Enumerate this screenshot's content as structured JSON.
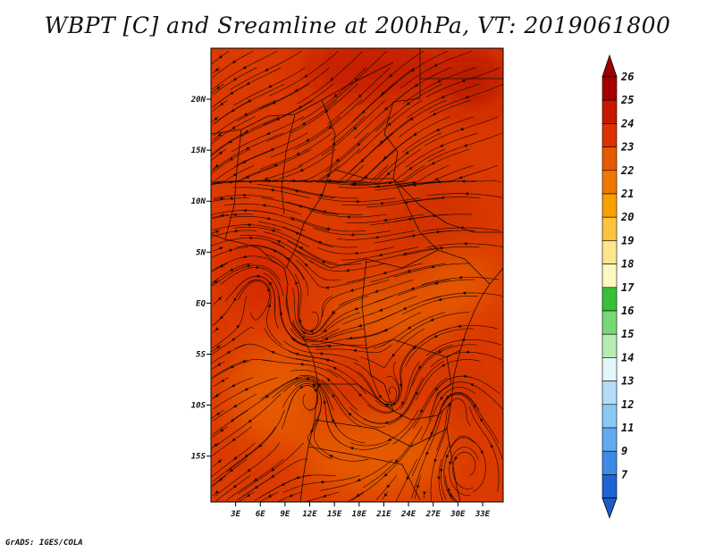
{
  "title": "WBPT [C] and Sreamline at 200hPa, VT: 2019061800",
  "credit": "GrADS: IGES/COLA",
  "map": {
    "lon_range": [
      0,
      35.5
    ],
    "lat_range": [
      -19.5,
      25
    ],
    "lat_ticks": [
      {
        "value": 20,
        "label": "20N"
      },
      {
        "value": 15,
        "label": "15N"
      },
      {
        "value": 10,
        "label": "10N"
      },
      {
        "value": 5,
        "label": "5N"
      },
      {
        "value": 0,
        "label": "EQ"
      },
      {
        "value": -5,
        "label": "5S"
      },
      {
        "value": -10,
        "label": "10S"
      },
      {
        "value": -15,
        "label": "15S"
      }
    ],
    "lon_ticks": [
      {
        "value": 3,
        "label": "3E"
      },
      {
        "value": 6,
        "label": "6E"
      },
      {
        "value": 9,
        "label": "9E"
      },
      {
        "value": 12,
        "label": "12E"
      },
      {
        "value": 15,
        "label": "15E"
      },
      {
        "value": 18,
        "label": "18E"
      },
      {
        "value": 21,
        "label": "21E"
      },
      {
        "value": 24,
        "label": "24E"
      },
      {
        "value": 27,
        "label": "27E"
      },
      {
        "value": 30,
        "label": "30E"
      },
      {
        "value": 33,
        "label": "33E"
      }
    ]
  },
  "colorbar": {
    "levels": [
      {
        "label": "26",
        "color": "#a50000"
      },
      {
        "label": "25",
        "color": "#c81800"
      },
      {
        "label": "24",
        "color": "#dc3200"
      },
      {
        "label": "23",
        "color": "#e85a00"
      },
      {
        "label": "22",
        "color": "#f07800"
      },
      {
        "label": "21",
        "color": "#f8a000"
      },
      {
        "label": "20",
        "color": "#fcc43c"
      },
      {
        "label": "19",
        "color": "#fde68c"
      },
      {
        "label": "18",
        "color": "#fcf8c0"
      },
      {
        "label": "17",
        "color": "#38c038"
      },
      {
        "label": "16",
        "color": "#78d878"
      },
      {
        "label": "15",
        "color": "#b4ecb4"
      },
      {
        "label": "14",
        "color": "#e6f7fb"
      },
      {
        "label": "13",
        "color": "#b4dcf8"
      },
      {
        "label": "12",
        "color": "#8cc8f4"
      },
      {
        "label": "11",
        "color": "#64aaf0"
      },
      {
        "label": "9",
        "color": "#3c8ce6"
      },
      {
        "label": "7",
        "color": "#1e64d2"
      }
    ],
    "top_color": "#a00000",
    "bottom_color": "#1e5ac8"
  },
  "field": {
    "blobs": [
      {
        "lon": 20,
        "lat": 23,
        "rx": 9,
        "ry": 3,
        "color": "#c41e00"
      },
      {
        "lon": 32,
        "lat": 22,
        "rx": 4,
        "ry": 3,
        "color": "#b81400"
      },
      {
        "lon": 6,
        "lat": 3,
        "rx": 4,
        "ry": 4,
        "color": "#d42a00"
      },
      {
        "lon": 27,
        "lat": 8,
        "rx": 6,
        "ry": 4,
        "color": "#d23000"
      },
      {
        "lon": 22,
        "lat": -1,
        "rx": 8,
        "ry": 3,
        "color": "#e25800"
      },
      {
        "lon": 30,
        "lat": 2,
        "rx": 5,
        "ry": 3,
        "color": "#e45600"
      },
      {
        "lon": 8,
        "lat": -9,
        "rx": 6,
        "ry": 5,
        "color": "#e55a00"
      },
      {
        "lon": 17,
        "lat": -10,
        "rx": 5,
        "ry": 3,
        "color": "#d63200"
      },
      {
        "lon": 20,
        "lat": -15,
        "rx": 9,
        "ry": 4,
        "color": "#e55a00"
      },
      {
        "lon": 31,
        "lat": -9,
        "rx": 3,
        "ry": 2,
        "color": "#d03000"
      }
    ],
    "base_color": "#db3a00"
  },
  "vortices": [
    {
      "lon": 6,
      "lat": 1,
      "dir": 1
    },
    {
      "lon": 12,
      "lat": -2,
      "dir": -1
    },
    {
      "lon": 12,
      "lat": -9,
      "dir": 1
    },
    {
      "lon": 22,
      "lat": -9,
      "dir": -1
    },
    {
      "lon": 31,
      "lat": -16,
      "dir": 1
    },
    {
      "lon": 30,
      "lat": -10,
      "dir": 1
    }
  ]
}
